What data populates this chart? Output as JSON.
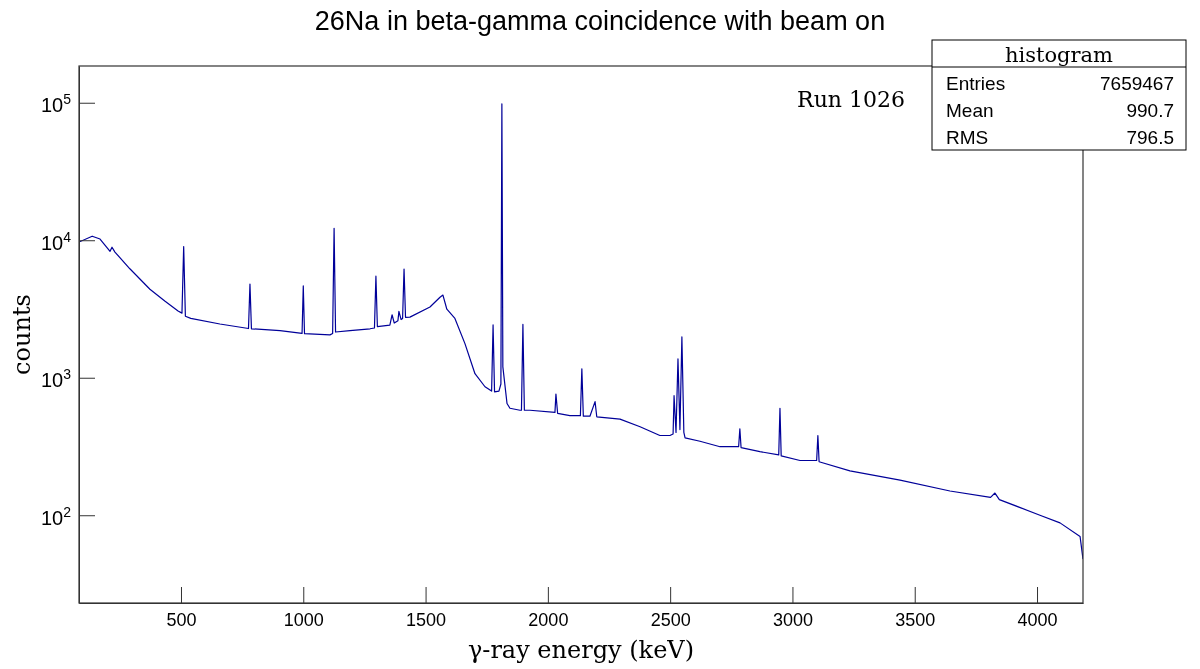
{
  "chart_data": {
    "type": "line",
    "title": "26Na in beta-gamma coincidence with beam on",
    "xlabel": "γ-ray energy (keV)",
    "ylabel": "counts",
    "annotations": [
      "Run 1026",
      "histogram",
      "Entries 7659467",
      "Mean 990.7",
      "RMS 796.5"
    ],
    "log": "y",
    "grid": false,
    "xlim": [
      83,
      4188
    ],
    "ylim": [
      23,
      185000
    ],
    "xticks": [
      500,
      1000,
      1500,
      2000,
      2500,
      3000,
      3500,
      4000
    ],
    "yticks": [
      {
        "value": 100,
        "label": "10$^{2}$"
      },
      {
        "value": 1000,
        "label": "10$^{3}$"
      },
      {
        "value": 10000,
        "label": "10$^{4}$"
      },
      {
        "value": 100000,
        "label": "10$^{5}$"
      }
    ],
    "series": [
      {
        "color": "#000099",
        "x": [
          83,
          137,
          169,
          210,
          218,
          230,
          291,
          373,
          435,
          488,
          504,
          511,
          518,
          540,
          659,
          776,
          782,
          788,
          905,
          995,
          1000,
          1005,
          1109,
          1120,
          1126,
          1132,
          1191,
          1273,
          1291,
          1297,
          1303,
          1354,
          1363,
          1372,
          1387,
          1391,
          1400,
          1406,
          1412,
          1418,
          1436,
          1518,
          1559,
          1571,
          1587,
          1620,
          1661,
          1702,
          1743,
          1770,
          1776,
          1782,
          1800,
          1808,
          1812,
          1816,
          1833,
          1845,
          1886,
          1892,
          1898,
          1904,
          1927,
          2029,
          2033,
          2040,
          2090,
          2133,
          2139,
          2145,
          2172,
          2193,
          2200,
          2295,
          2377,
          2458,
          2499,
          2512,
          2516,
          2524,
          2532,
          2540,
          2548,
          2556,
          2561,
          2622,
          2704,
          2780,
          2785,
          2790,
          2867,
          2944,
          2949,
          2954,
          3031,
          3099,
          3104,
          3109,
          3235,
          3440,
          3644,
          3810,
          3828,
          3846,
          4012,
          4094,
          4176,
          4188
        ],
        "values": [
          9700,
          10700,
          10200,
          8300,
          8900,
          8200,
          6200,
          4400,
          3600,
          3060,
          2950,
          9000,
          2800,
          2700,
          2460,
          2280,
          4800,
          2270,
          2200,
          2100,
          4650,
          2090,
          2050,
          2100,
          12200,
          2150,
          2200,
          2270,
          2300,
          5480,
          2350,
          2410,
          2870,
          2500,
          2600,
          3040,
          2650,
          2700,
          6170,
          2750,
          2760,
          3270,
          3850,
          3990,
          3150,
          2700,
          1770,
          1070,
          860,
          800,
          2420,
          790,
          800,
          900,
          98000,
          1200,
          650,
          600,
          580,
          580,
          2440,
          580,
          580,
          560,
          760,
          550,
          530,
          530,
          1160,
          525,
          525,
          670,
          520,
          500,
          440,
          380,
          380,
          390,
          740,
          400,
          1370,
          420,
          1980,
          400,
          365,
          345,
          315,
          315,
          425,
          310,
          290,
          275,
          600,
          270,
          250,
          250,
          380,
          245,
          210,
          180,
          150,
          135,
          145,
          130,
          100,
          88,
          70,
          48
        ]
      }
    ]
  }
}
